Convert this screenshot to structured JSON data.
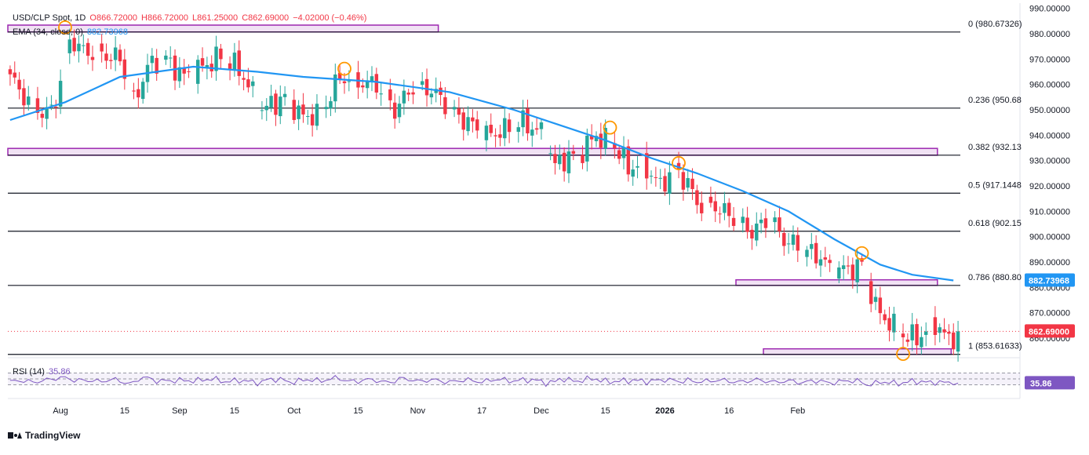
{
  "header": {
    "symbol": "USD/CLP Spot, 1D",
    "open": "O866.72000",
    "high": "H866.72000",
    "low": "L861.25000",
    "close": "C862.69000",
    "change": "−4.02000 (−0.46%)",
    "ema_label": "EMA (34, close, 0)",
    "ema_value": "882.73968"
  },
  "rsi": {
    "label": "RSI (14)",
    "value": "35.86"
  },
  "branding": {
    "name": "TradingView"
  },
  "chart_data": {
    "type": "candlestick",
    "symbol": "USD/CLP",
    "timeframe": "1D",
    "y_range": [
      850,
      990
    ],
    "y_ticks": [
      "990.00000",
      "980.00000",
      "970.00000",
      "960.00000",
      "950.00000",
      "940.00000",
      "930.00000",
      "920.00000",
      "910.00000",
      "900.00000",
      "890.00000",
      "880.00000",
      "870.00000",
      "860.00000"
    ],
    "x_ticks": [
      "Aug",
      "15",
      "Sep",
      "15",
      "Oct",
      "15",
      "Nov",
      "17",
      "Dec",
      "15",
      "2026",
      "16",
      "Feb"
    ],
    "x_ticks_bold": [
      "2026"
    ],
    "last_price": 862.69,
    "last_price_label": "862.69000",
    "ema_last_label": "882.73968",
    "ema_period": 34,
    "colors": {
      "up": "#26a69a",
      "down": "#f23645",
      "ema": "#2196f3",
      "rsi": "#7e57c2",
      "zone": "#9c27b0",
      "marker": "#ff9800"
    },
    "fib_levels": [
      {
        "label": "0 (980.67326)",
        "value": 980.67326
      },
      {
        "label": "0.236 (950.68",
        "value": 950.68
      },
      {
        "label": "0.382 (932.13",
        "value": 932.13
      },
      {
        "label": "0.5 (917.1448",
        "value": 917.1448
      },
      {
        "label": "0.618 (902.15",
        "value": 902.15
      },
      {
        "label": "0.786 (880.80",
        "value": 880.8
      },
      {
        "label": "1 (853.61633)",
        "value": 853.61633
      }
    ],
    "zones": [
      {
        "from_bar": 0,
        "to_bar": 93,
        "lo": 980.7,
        "hi": 983.4
      },
      {
        "from_bar": 0,
        "to_bar": 202,
        "lo": 932.1,
        "hi": 934.8
      },
      {
        "from_bar": 159,
        "to_bar": 202,
        "lo": 880.8,
        "hi": 883.0
      },
      {
        "from_bar": 165,
        "to_bar": 205,
        "lo": 853.6,
        "hi": 855.8
      }
    ],
    "markers": [
      {
        "bar": 12,
        "price": 982.5
      },
      {
        "bar": 73,
        "price": 966.2
      },
      {
        "bar": 131,
        "price": 943.0
      },
      {
        "bar": 146,
        "price": 929.0
      },
      {
        "bar": 186,
        "price": 893.5
      },
      {
        "bar": 195,
        "price": 853.8
      }
    ],
    "anchors": [
      [
        0,
        963
      ],
      [
        4,
        953
      ],
      [
        8,
        948
      ],
      [
        10,
        954
      ],
      [
        13,
        978
      ],
      [
        16,
        973
      ],
      [
        20,
        972
      ],
      [
        24,
        970
      ],
      [
        27,
        953
      ],
      [
        30,
        967
      ],
      [
        34,
        970
      ],
      [
        38,
        963
      ],
      [
        42,
        967
      ],
      [
        46,
        971
      ],
      [
        50,
        966
      ],
      [
        55,
        950
      ],
      [
        60,
        955
      ],
      [
        64,
        947
      ],
      [
        68,
        949
      ],
      [
        72,
        963
      ],
      [
        76,
        961
      ],
      [
        80,
        960
      ],
      [
        84,
        950
      ],
      [
        88,
        959
      ],
      [
        92,
        958
      ],
      [
        96,
        950
      ],
      [
        100,
        945
      ],
      [
        104,
        940
      ],
      [
        108,
        942
      ],
      [
        112,
        945
      ],
      [
        116,
        941
      ],
      [
        119,
        928
      ],
      [
        121,
        931
      ],
      [
        124,
        932
      ],
      [
        128,
        940
      ],
      [
        132,
        936
      ],
      [
        135,
        927
      ],
      [
        138,
        929
      ],
      [
        142,
        920
      ],
      [
        145,
        927
      ],
      [
        148,
        921
      ],
      [
        150,
        913
      ],
      [
        154,
        912
      ],
      [
        158,
        907
      ],
      [
        162,
        902
      ],
      [
        166,
        907
      ],
      [
        169,
        899
      ],
      [
        173,
        895
      ],
      [
        177,
        892
      ],
      [
        179,
        887
      ],
      [
        183,
        887
      ],
      [
        186,
        889
      ],
      [
        189,
        872
      ],
      [
        192,
        866
      ],
      [
        196,
        860
      ],
      [
        199,
        861
      ],
      [
        202,
        866
      ],
      [
        205,
        859
      ],
      [
        207,
        862.69
      ]
    ],
    "ema_anchors": [
      [
        0,
        946
      ],
      [
        12,
        953
      ],
      [
        24,
        963
      ],
      [
        40,
        967
      ],
      [
        54,
        965
      ],
      [
        64,
        963
      ],
      [
        80,
        961
      ],
      [
        96,
        957
      ],
      [
        110,
        950
      ],
      [
        120,
        944
      ],
      [
        130,
        938
      ],
      [
        140,
        931
      ],
      [
        150,
        925
      ],
      [
        160,
        918
      ],
      [
        170,
        910
      ],
      [
        180,
        899
      ],
      [
        190,
        889
      ],
      [
        197,
        885
      ],
      [
        206,
        882.74
      ]
    ],
    "rsi_range": [
      0,
      100
    ],
    "rsi_levels": [
      70,
      50,
      30
    ],
    "rsi_last": 35.86
  }
}
